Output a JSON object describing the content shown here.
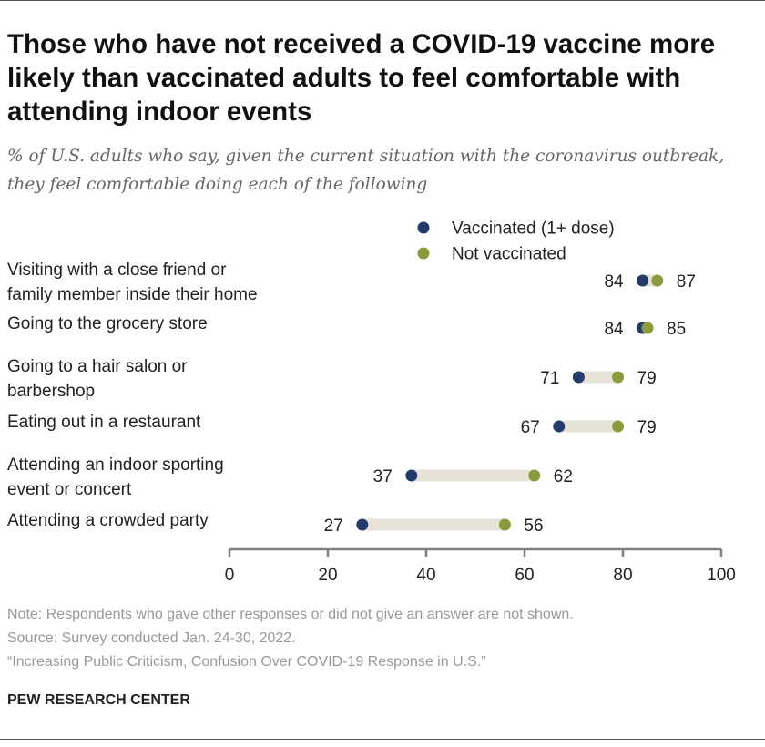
{
  "title": "Those who have not received a COVID-19 vaccine more likely than vaccinated adults to feel comfortable with attending indoor events",
  "subtitle": "% of U.S. adults who say, given the current situation with the coronavirus outbreak, they feel comfortable doing each of the following",
  "notes": {
    "note": "Note: Respondents who gave other responses or did not give an answer are not shown.",
    "source": "Source: Survey conducted Jan. 24-30, 2022.",
    "report": "“Increasing Public Criticism, Confusion Over COVID-19 Response in U.S.”"
  },
  "brand": "PEW RESEARCH CENTER",
  "colors": {
    "vaccinated": "#243a6b",
    "not_vaccinated": "#8a9a3d",
    "bar": "#e6e2d8",
    "axis": "#808080",
    "label": "#222222"
  },
  "chart_data": {
    "type": "dot",
    "title": "Those who have not received a COVID-19 vaccine more likely than vaccinated adults to feel comfortable with attending indoor events",
    "xlim": [
      0,
      100
    ],
    "xticks": [
      0,
      20,
      40,
      60,
      80,
      100
    ],
    "legend_position": "top-right",
    "categories": [
      [
        "Visiting with a close friend or",
        "family member inside their home"
      ],
      [
        "Going to the grocery store"
      ],
      [
        "Going to a hair salon or",
        "barbershop"
      ],
      [
        "Eating out in a restaurant"
      ],
      [
        "Attending an indoor sporting",
        "event or concert"
      ],
      [
        "Attending a crowded party"
      ]
    ],
    "series": [
      {
        "name": "Vaccinated (1+ dose)",
        "values": [
          84,
          84,
          71,
          67,
          37,
          27
        ]
      },
      {
        "name": "Not vaccinated",
        "values": [
          87,
          85,
          79,
          79,
          62,
          56
        ]
      }
    ]
  }
}
